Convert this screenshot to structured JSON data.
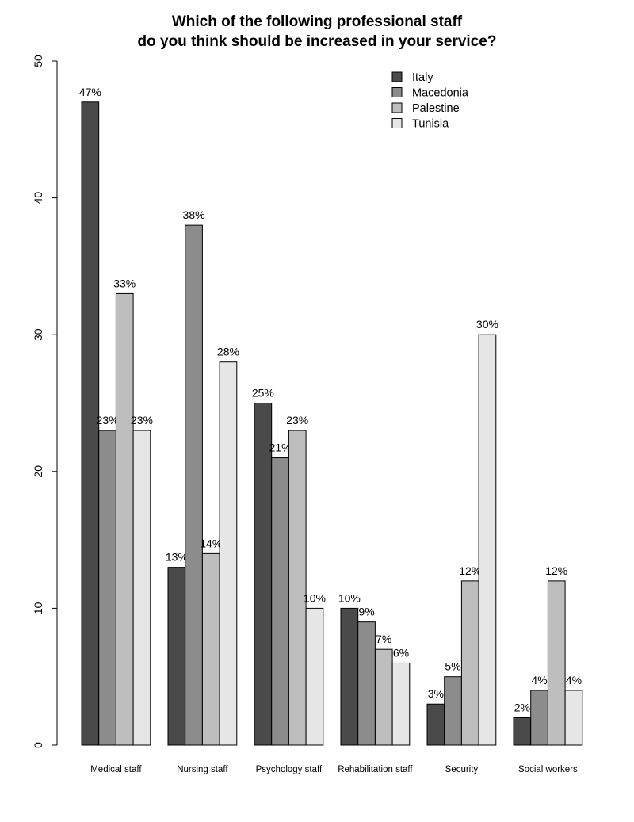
{
  "chart_data": {
    "type": "bar",
    "title_line1": "Which of the following professional staff",
    "title_line2": "do you think should be increased in your service?",
    "xlabel": "",
    "ylabel": "",
    "ylim": [
      0,
      50
    ],
    "yticks": [
      "0",
      "10",
      "20",
      "30",
      "40",
      "50"
    ],
    "grid": false,
    "legend_position": "top-right",
    "categories": [
      "Medical staff",
      "Nursing staff",
      "Psychology staff",
      "Rehabilitation staff",
      "Security",
      "Social workers"
    ],
    "series": [
      {
        "name": "Italy",
        "color": "#4a4a4a",
        "values": [
          47,
          13,
          25,
          10,
          3,
          2
        ],
        "labels": [
          "47%",
          "13%",
          "25%",
          "10%",
          "3%",
          "2%"
        ]
      },
      {
        "name": "Macedonia",
        "color": "#8c8c8c",
        "values": [
          23,
          38,
          21,
          9,
          5,
          4
        ],
        "labels": [
          "23%",
          "38%",
          "21%",
          "9%",
          "5%",
          "4%"
        ]
      },
      {
        "name": "Palestine",
        "color": "#bebebe",
        "values": [
          33,
          14,
          23,
          7,
          12,
          12
        ],
        "labels": [
          "33%",
          "14%",
          "23%",
          "7%",
          "12%",
          "12%"
        ]
      },
      {
        "name": "Tunisia",
        "color": "#e6e6e6",
        "values": [
          23,
          28,
          10,
          6,
          30,
          4
        ],
        "labels": [
          "23%",
          "28%",
          "10%",
          "6%",
          "30%",
          "4%"
        ]
      }
    ]
  }
}
